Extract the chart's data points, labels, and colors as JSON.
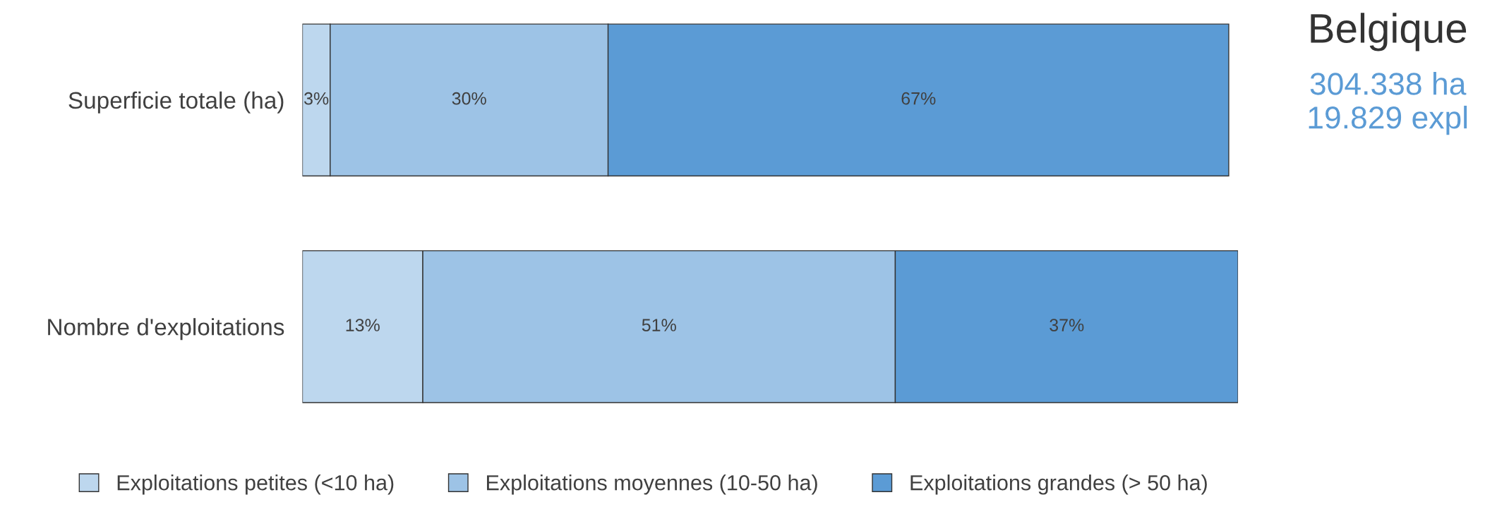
{
  "chart_data": {
    "type": "bar",
    "orientation": "horizontal",
    "stacked": true,
    "legend": "bottom",
    "grid": false,
    "title": "Belgique",
    "subtitle": "304.338 ha\n19.829 expl",
    "categories": [
      "Superficie totale (ha)",
      "Nombre d'exploitations"
    ],
    "series": [
      {
        "name": "Exploitations petites (<10 ha)",
        "color": "#bdd7ee",
        "values": [
          3,
          13
        ],
        "value_labels": [
          "3%",
          "13%"
        ]
      },
      {
        "name": "Exploitations moyennes (10-50 ha)",
        "color": "#9dc3e6",
        "values": [
          30,
          51
        ],
        "value_labels": [
          "30%",
          "51%"
        ]
      },
      {
        "name": "Exploitations grandes (> 50 ha)",
        "color": "#5b9bd5",
        "values": [
          67,
          37
        ],
        "value_labels": [
          "67%",
          "37%"
        ]
      }
    ]
  }
}
